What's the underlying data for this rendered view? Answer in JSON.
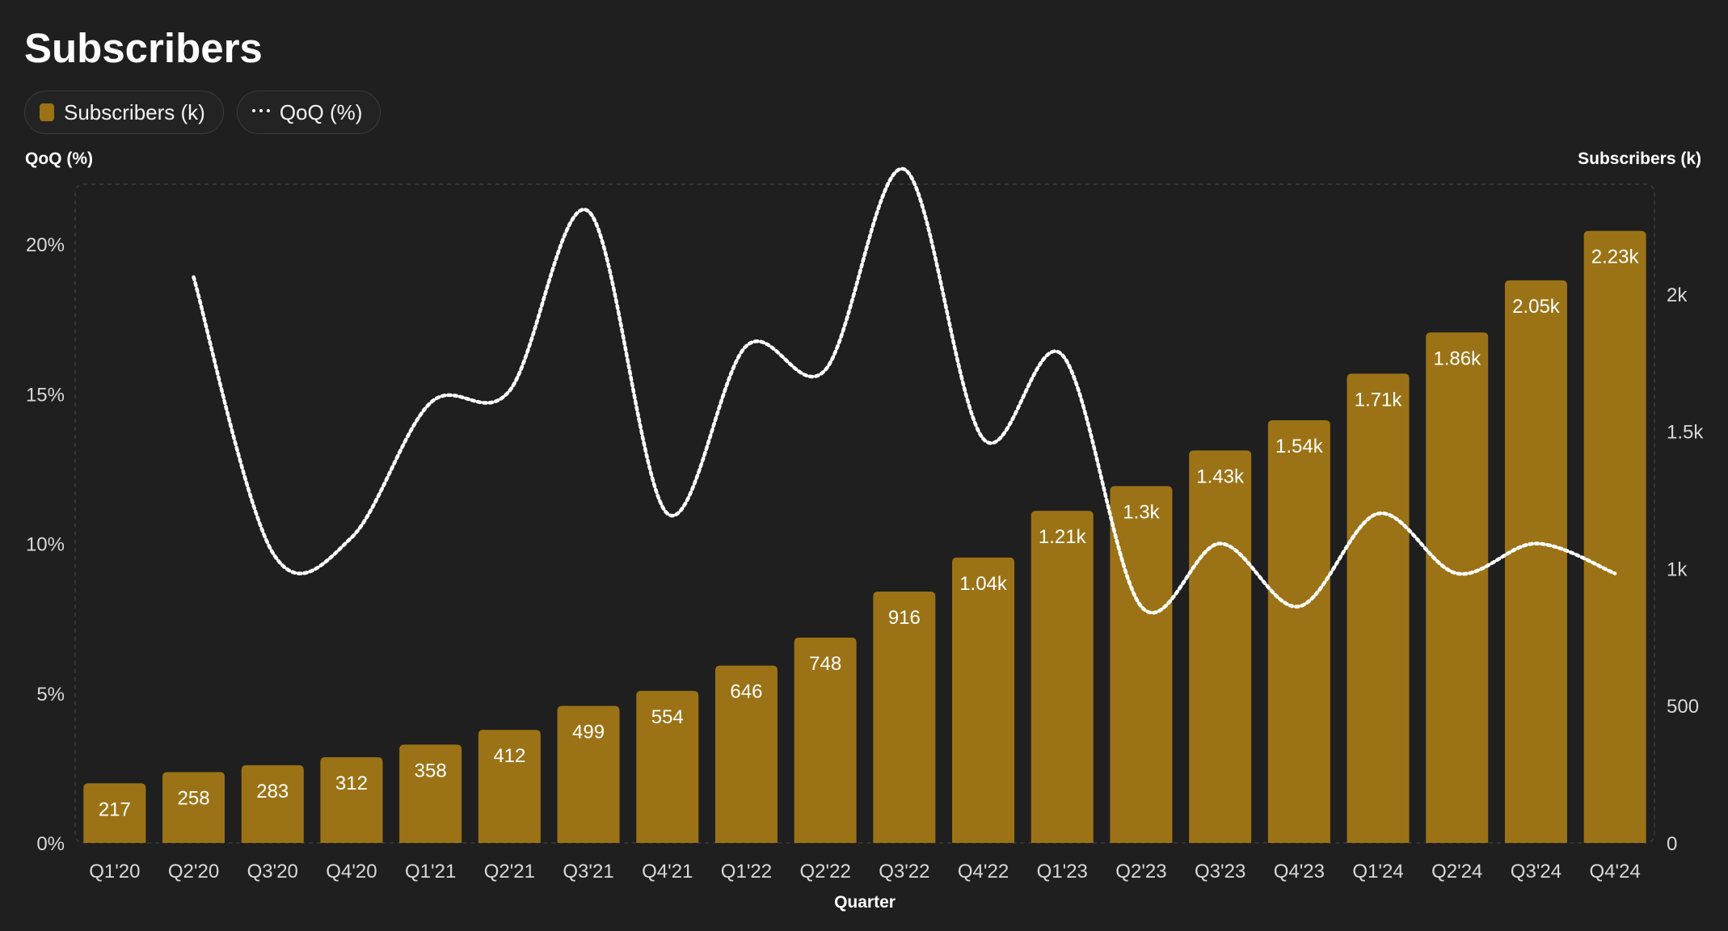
{
  "title": "Subscribers",
  "legend": [
    {
      "label": "Subscribers (k)",
      "kind": "bar"
    },
    {
      "label": "QoQ (%)",
      "kind": "dotted-line"
    }
  ],
  "colors": {
    "background": "#1f1f1f",
    "bar": "#9b7316",
    "line": "#ffffff",
    "text": "#ffffff",
    "muted_text": "#d8d8d8",
    "grid": "#3a3a3a"
  },
  "chart_data": {
    "type": "bar",
    "title": "Subscribers",
    "xlabel": "Quarter",
    "categories": [
      "Q1'20",
      "Q2'20",
      "Q3'20",
      "Q4'20",
      "Q1'21",
      "Q2'21",
      "Q3'21",
      "Q4'21",
      "Q1'22",
      "Q2'22",
      "Q3'22",
      "Q4'22",
      "Q1'23",
      "Q2'23",
      "Q3'23",
      "Q4'23",
      "Q1'24",
      "Q2'24",
      "Q3'24",
      "Q4'24"
    ],
    "series": [
      {
        "name": "Subscribers (k)",
        "type": "bar",
        "axis": "right",
        "values": [
          217,
          258,
          283,
          312,
          358,
          412,
          499,
          554,
          646,
          748,
          916,
          1040,
          1210,
          1300,
          1430,
          1540,
          1710,
          1860,
          2050,
          2230
        ],
        "labels": [
          "217",
          "258",
          "283",
          "312",
          "358",
          "412",
          "499",
          "554",
          "646",
          "748",
          "916",
          "1.04k",
          "1.21k",
          "1.3k",
          "1.43k",
          "1.54k",
          "1.71k",
          "1.86k",
          "2.05k",
          "2.23k"
        ]
      },
      {
        "name": "QoQ (%)",
        "type": "line",
        "style": "dotted",
        "axis": "left",
        "values": [
          null,
          18.9,
          9.7,
          10.2,
          14.7,
          15.1,
          21.1,
          11.0,
          16.6,
          15.8,
          22.5,
          13.5,
          16.3,
          7.9,
          10.0,
          7.9,
          11.0,
          9.0,
          10.0,
          9.0
        ]
      }
    ],
    "y_left": {
      "label": "QoQ (%)",
      "range": [
        0,
        22
      ],
      "ticks": [
        0,
        5,
        10,
        15,
        20
      ],
      "tick_labels": [
        "0%",
        "5%",
        "10%",
        "15%",
        "20%"
      ]
    },
    "y_right": {
      "label": "Subscribers (k)",
      "range": [
        0,
        2400
      ],
      "ticks": [
        0,
        500,
        1000,
        1500,
        2000
      ],
      "tick_labels": [
        "0",
        "500",
        "1k",
        "1.5k",
        "2k"
      ]
    },
    "grid": false,
    "legend_position": "top-left"
  }
}
